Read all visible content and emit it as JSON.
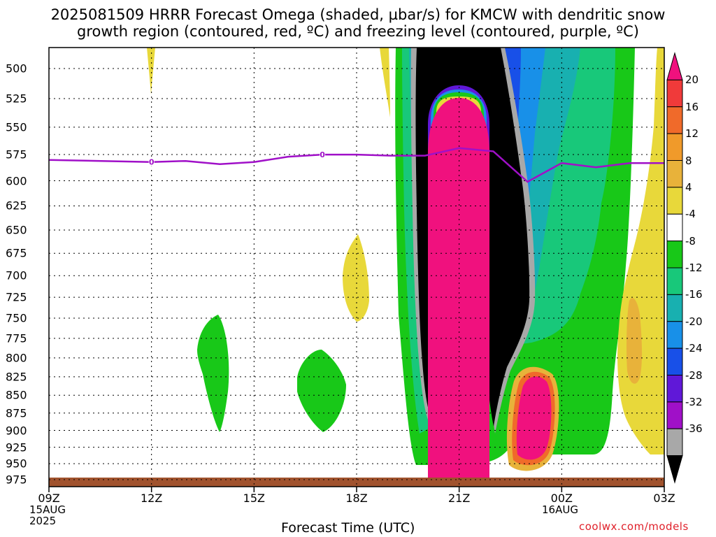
{
  "title_line1": "2025081509 HRRR Forecast Omega (shaded, µbar/s) for KMCW with dendritic snow",
  "title_line2": "growth region (contoured, red, ºC) and freezing level (contoured, purple, ºC)",
  "chart_data": {
    "type": "heatmap",
    "xlabel": "Forecast Time (UTC)",
    "ylabel": "",
    "x_ticks": [
      "09Z",
      "12Z",
      "15Z",
      "18Z",
      "21Z",
      "00Z",
      "03Z"
    ],
    "x_subticks": {
      "09Z": [
        "15AUG",
        "2025"
      ],
      "00Z": [
        "16AUG"
      ]
    },
    "y_ticks": [
      500,
      525,
      550,
      575,
      600,
      625,
      650,
      675,
      700,
      725,
      750,
      775,
      800,
      825,
      850,
      875,
      900,
      925,
      950,
      975
    ],
    "ylim": [
      975,
      470
    ],
    "colorbar": {
      "ticks": [
        20,
        16,
        12,
        8,
        4,
        -4,
        -8,
        -12,
        -16,
        -20,
        -24,
        -28,
        -32,
        -36
      ],
      "colors": [
        "#f0117e",
        "#f03a3a",
        "#f06a2a",
        "#f09a2a",
        "#e8b23a",
        "#e8d83a",
        "#ffffff",
        "#18c818",
        "#18c87a",
        "#18b0b0",
        "#1890e8",
        "#1850e8",
        "#6018d8",
        "#a010c8",
        "#a8a8a8",
        "#000000"
      ]
    },
    "freezing_level_series": {
      "label": "0",
      "x": [
        "09Z",
        "12Z",
        "13Z",
        "14Z",
        "15Z",
        "16Z",
        "17Z",
        "18Z",
        "19Z",
        "20Z",
        "21Z",
        "22Z",
        "23Z",
        "00Z",
        "01Z",
        "02Z",
        "03Z"
      ],
      "y": [
        580,
        582,
        581,
        584,
        582,
        577,
        575,
        575,
        576,
        576,
        569,
        572,
        601,
        583,
        587,
        583,
        583
      ]
    },
    "grid": true
  },
  "watermark": "coolwx.com/models"
}
